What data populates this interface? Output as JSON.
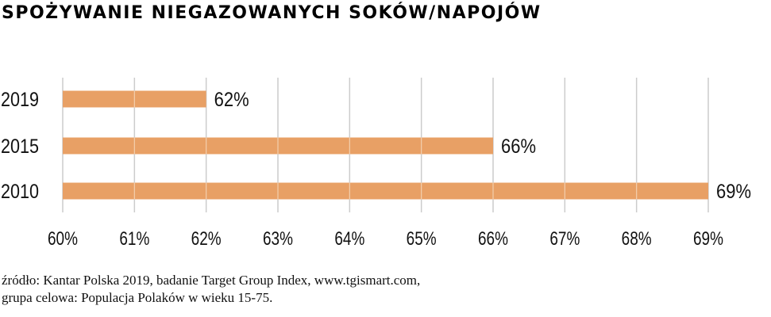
{
  "title": "SPOŻYWANIE NIEGAZOWANYCH SOKÓW/NAPOJÓW",
  "source": {
    "line1": "źródło: Kantar Polska 2019, badanie Target Group Index, www.tgismart.com,",
    "line2": "grupa celowa: Populacja Polaków w wieku 15-75."
  },
  "colors": {
    "bar": "#E8A065",
    "grid": "#cccccc",
    "text": "#111111"
  },
  "chart_data": {
    "type": "bar",
    "orientation": "horizontal",
    "title": "SPOŻYWANIE NIEGAZOWANYCH SOKÓW/NAPOJÓW",
    "categories": [
      "2019",
      "2015",
      "2010"
    ],
    "values": [
      62,
      66,
      69
    ],
    "value_labels": [
      "62%",
      "66%",
      "69%"
    ],
    "xlim": [
      60,
      69
    ],
    "xticks": [
      60,
      61,
      62,
      63,
      64,
      65,
      66,
      67,
      68,
      69
    ],
    "xtick_labels": [
      "60%",
      "61%",
      "62%",
      "63%",
      "64%",
      "65%",
      "66%",
      "67%",
      "68%",
      "69%"
    ],
    "xlabel": "",
    "ylabel": "",
    "grid": "vertical",
    "legend": "none"
  }
}
